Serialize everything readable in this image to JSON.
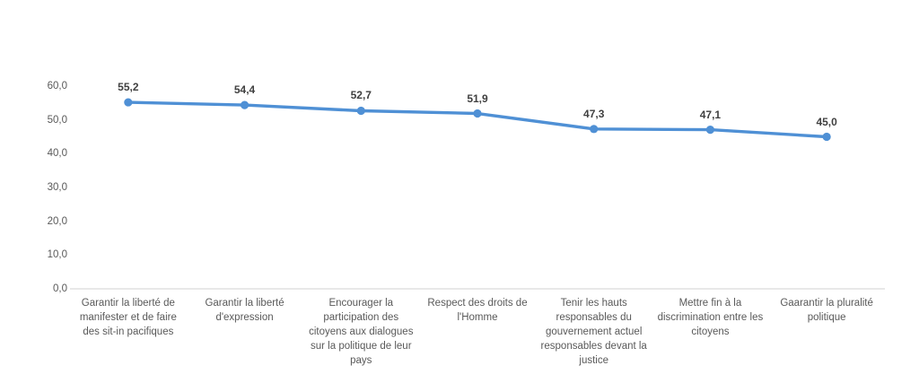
{
  "chart_data": {
    "type": "line",
    "title": "",
    "xlabel": "",
    "ylabel": "",
    "legend": "none",
    "grid": false,
    "ylim": [
      0,
      60
    ],
    "categories": [
      "Garantir la liberté de manifester et de faire des sit-in pacifiques",
      "Garantir la liberté d'expression",
      "Encourager la participation des citoyens aux dialogues sur la politique de leur pays",
      "Respect des droits de l'Homme",
      "Tenir les hauts responsables du gouvernement actuel responsables devant la justice",
      "Mettre fin à la discrimination entre les citoyens",
      "Gaarantir la pluralité politique"
    ],
    "values": [
      55.2,
      54.4,
      52.7,
      51.9,
      47.3,
      47.1,
      45.0
    ],
    "data_labels": [
      "55,2",
      "54,4",
      "52,7",
      "51,9",
      "47,3",
      "47,1",
      "45,0"
    ],
    "y_ticks": [
      {
        "label": "60,0",
        "value": 60
      },
      {
        "label": "50,0",
        "value": 50
      },
      {
        "label": "40,0",
        "value": 40
      },
      {
        "label": "30,0",
        "value": 30
      },
      {
        "label": "20,0",
        "value": 20
      },
      {
        "label": "10,0",
        "value": 10
      },
      {
        "label": "0,0",
        "value": 0
      }
    ],
    "colors": {
      "line": "#4F90D5",
      "marker": "#4F90D5",
      "data_label": "#404040",
      "axis_label": "#595959",
      "axis_line": "#D9D9D9",
      "background": "#FFFFFF"
    }
  }
}
